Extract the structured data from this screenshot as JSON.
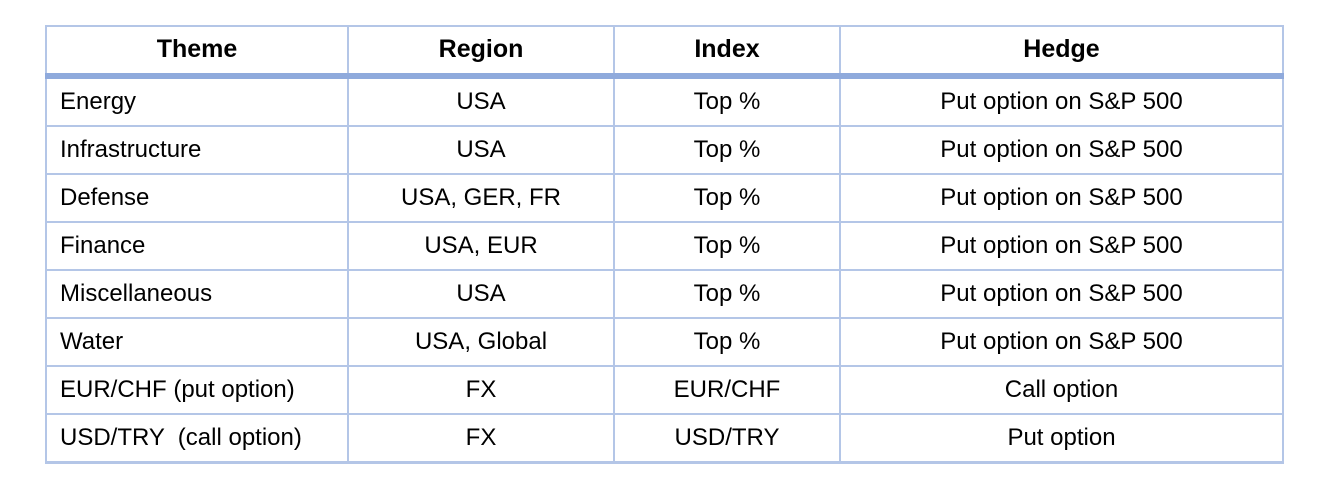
{
  "table": {
    "columns": [
      {
        "key": "theme",
        "label": "Theme"
      },
      {
        "key": "region",
        "label": "Region"
      },
      {
        "key": "index",
        "label": "Index"
      },
      {
        "key": "hedge",
        "label": "Hedge"
      }
    ],
    "rows": [
      {
        "theme": "Energy",
        "region": "USA",
        "index": "Top %",
        "hedge": "Put option on S&P 500"
      },
      {
        "theme": "Infrastructure",
        "region": "USA",
        "index": "Top %",
        "hedge": "Put option on S&P 500"
      },
      {
        "theme": "Defense",
        "region": "USA, GER, FR",
        "index": "Top %",
        "hedge": "Put option on S&P 500"
      },
      {
        "theme": "Finance",
        "region": "USA, EUR",
        "index": "Top %",
        "hedge": "Put option on S&P 500"
      },
      {
        "theme": "Miscellaneous",
        "region": "USA",
        "index": "Top %",
        "hedge": "Put option on S&P 500"
      },
      {
        "theme": "Water",
        "region": "USA, Global",
        "index": "Top %",
        "hedge": "Put option on S&P 500"
      },
      {
        "theme": "EUR/CHF (put option)",
        "region": "FX",
        "index": "EUR/CHF",
        "hedge": "Call option"
      },
      {
        "theme": "USD/TRY  (call option)",
        "region": "FX",
        "index": "USD/TRY",
        "hedge": "Put option"
      }
    ],
    "colors": {
      "grid_border": "#b4c6e7",
      "header_rule": "#8faadc",
      "text": "#000000",
      "background": "#ffffff"
    }
  }
}
